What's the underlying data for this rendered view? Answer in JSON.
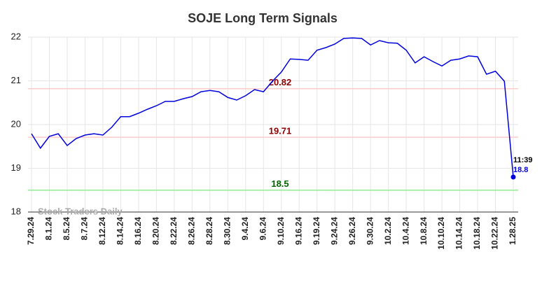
{
  "chart_data": {
    "type": "line",
    "title": "SOJE Long Term Signals",
    "categories": [
      "7.29.24",
      null,
      "8.1.24",
      null,
      "8.5.24",
      null,
      "8.7.24",
      null,
      "8.12.24",
      null,
      "8.14.24",
      null,
      "8.16.24",
      null,
      "8.20.24",
      null,
      "8.22.24",
      null,
      "8.26.24",
      null,
      "8.28.24",
      null,
      "8.30.24",
      null,
      "9.4.24",
      null,
      "9.6.24",
      null,
      "9.10.24",
      null,
      "9.16.24",
      null,
      "9.19.24",
      null,
      "9.24.24",
      null,
      "9.26.24",
      null,
      "9.30.24",
      null,
      "10.2.24",
      null,
      "10.4.24",
      null,
      "10.8.24",
      null,
      "10.10.24",
      null,
      "10.14.24",
      null,
      "10.18.24",
      null,
      "10.22.24",
      null,
      "1.28.25"
    ],
    "series": [
      {
        "name": "SOJE",
        "color": "#0000dd",
        "values": [
          19.79,
          19.46,
          19.73,
          19.79,
          19.52,
          19.68,
          19.76,
          19.79,
          19.76,
          19.94,
          20.18,
          20.18,
          20.26,
          20.35,
          20.43,
          20.53,
          20.53,
          20.59,
          20.64,
          20.75,
          20.78,
          20.75,
          20.62,
          20.56,
          20.66,
          20.8,
          20.75,
          20.99,
          21.2,
          21.5,
          21.49,
          21.47,
          21.7,
          21.76,
          21.84,
          21.97,
          21.98,
          21.97,
          21.82,
          21.92,
          21.87,
          21.86,
          21.7,
          21.41,
          21.55,
          21.44,
          21.34,
          21.47,
          21.5,
          21.57,
          21.55,
          21.15,
          21.22,
          20.99,
          18.8
        ]
      }
    ],
    "hlines": [
      {
        "value": 20.82,
        "color": "#ffcccc",
        "label_color": "#8b0000"
      },
      {
        "value": 19.71,
        "color": "#ffcccc",
        "label_color": "#8b0000"
      },
      {
        "value": 18.5,
        "color": "#90ee90",
        "label_color": "#006400"
      }
    ],
    "last_time": "11:39",
    "watermark": "Stock Traders Daily",
    "ylim": [
      18,
      22
    ],
    "yticks": [
      18,
      19,
      20,
      21,
      22
    ],
    "grid": true
  }
}
